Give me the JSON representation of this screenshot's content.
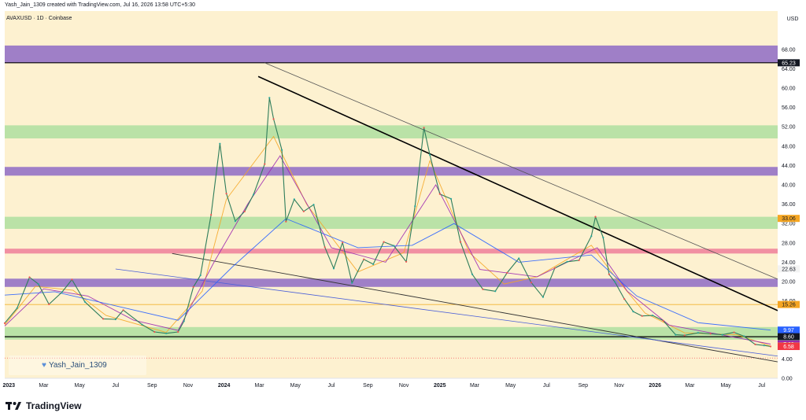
{
  "header": {
    "credit": "Yash_Jain_1309 created with TradingView.com, Jul 16, 2026 13:58 UTC+5:30"
  },
  "chart_data": {
    "type": "line",
    "title": "AVAXUSD · 1D · Coinbase",
    "currency": "USD",
    "y_ticks": [
      "68.00",
      "64.00",
      "60.00",
      "56.00",
      "52.00",
      "48.00",
      "44.00",
      "40.00",
      "36.00",
      "32.00",
      "28.00",
      "24.00",
      "20.00",
      "16.00",
      "4.00",
      "0.00"
    ],
    "x_ticks": [
      "2023",
      "Mar",
      "May",
      "Jul",
      "Sep",
      "Nov",
      "2024",
      "Mar",
      "May",
      "Jul",
      "Sep",
      "Nov",
      "2025",
      "Mar",
      "May",
      "Jul",
      "Sep",
      "Nov",
      "2026",
      "Mar",
      "May",
      "Jul"
    ],
    "x_tick_bold": [
      "2023",
      "2024",
      "2025",
      "2026"
    ],
    "zones": [
      {
        "low": 65.23,
        "high": 68.8,
        "color": "#8e6bc6"
      },
      {
        "low": 49.6,
        "high": 52.3,
        "color": "#aedfa0"
      },
      {
        "low": 41.9,
        "high": 43.7,
        "color": "#8e6bc6"
      },
      {
        "low": 30.9,
        "high": 33.4,
        "color": "#aedfa0"
      },
      {
        "low": 25.8,
        "high": 26.8,
        "color": "#ef7f9a"
      },
      {
        "low": 18.9,
        "high": 20.6,
        "color": "#8e6bc6"
      },
      {
        "low": 8.0,
        "high": 10.6,
        "color": "#aedfa0"
      }
    ],
    "levels": [
      {
        "value": 65.23,
        "color": "#000000"
      },
      {
        "value": 15.26,
        "color": "#f2b431"
      },
      {
        "value": 8.6,
        "color": "#000000"
      }
    ],
    "price_labels": [
      {
        "text": "65.23",
        "value": 65.23,
        "bg": "#131722",
        "fg": "#ffffff"
      },
      {
        "text": "33.06",
        "value": 33.06,
        "bg": "#f5a623",
        "fg": "#131722"
      },
      {
        "text": "22.63",
        "value": 22.63,
        "bg": "#f3f3f3",
        "fg": "#131722"
      },
      {
        "text": "15.26",
        "value": 15.26,
        "bg": "#f5a623",
        "fg": "#131722"
      },
      {
        "text": "9.97",
        "value": 9.97,
        "bg": "#2962ff",
        "fg": "#ffffff"
      },
      {
        "text": "8.60",
        "value": 8.6,
        "bg": "#131722",
        "fg": "#ffffff"
      },
      {
        "text": "7.08",
        "value": 7.08,
        "bg": "#9c27b0",
        "fg": "#ffffff"
      },
      {
        "text": "6.65",
        "value": 6.65,
        "bg": "#f5a623",
        "fg": "#131722"
      },
      {
        "text": "6.58",
        "value": 6.58,
        "bg": "#f23645",
        "fg": "#ffffff"
      }
    ],
    "price_series": [
      {
        "date": "2022-12-25",
        "close": 11.4
      },
      {
        "date": "2023-01-15",
        "close": 14.5
      },
      {
        "date": "2023-02-05",
        "close": 20.9
      },
      {
        "date": "2023-02-20",
        "close": 19.5
      },
      {
        "date": "2023-03-10",
        "close": 15.3
      },
      {
        "date": "2023-04-01",
        "close": 17.8
      },
      {
        "date": "2023-04-18",
        "close": 20.4
      },
      {
        "date": "2023-05-10",
        "close": 15.8
      },
      {
        "date": "2023-06-10",
        "close": 12.3
      },
      {
        "date": "2023-07-01",
        "close": 12.2
      },
      {
        "date": "2023-07-14",
        "close": 14.1
      },
      {
        "date": "2023-08-15",
        "close": 11.1
      },
      {
        "date": "2023-09-05",
        "close": 9.6
      },
      {
        "date": "2023-09-25",
        "close": 9.3
      },
      {
        "date": "2023-10-15",
        "close": 9.6
      },
      {
        "date": "2023-10-25",
        "close": 11.8
      },
      {
        "date": "2023-11-10",
        "close": 18.9
      },
      {
        "date": "2023-11-22",
        "close": 21.3
      },
      {
        "date": "2023-12-10",
        "close": 33.8
      },
      {
        "date": "2023-12-25",
        "close": 48.5
      },
      {
        "date": "2024-01-05",
        "close": 38.2
      },
      {
        "date": "2024-01-20",
        "close": 32.5
      },
      {
        "date": "2024-02-05",
        "close": 34.5
      },
      {
        "date": "2024-02-20",
        "close": 38.0
      },
      {
        "date": "2024-03-10",
        "close": 44.3
      },
      {
        "date": "2024-03-18",
        "close": 58.0
      },
      {
        "date": "2024-03-25",
        "close": 53.6
      },
      {
        "date": "2024-04-08",
        "close": 47.2
      },
      {
        "date": "2024-04-15",
        "close": 32.4
      },
      {
        "date": "2024-04-29",
        "close": 37.0
      },
      {
        "date": "2024-05-15",
        "close": 34.5
      },
      {
        "date": "2024-06-01",
        "close": 35.9
      },
      {
        "date": "2024-06-20",
        "close": 27.1
      },
      {
        "date": "2024-07-05",
        "close": 22.7
      },
      {
        "date": "2024-07-20",
        "close": 28.1
      },
      {
        "date": "2024-08-05",
        "close": 19.7
      },
      {
        "date": "2024-08-25",
        "close": 24.6
      },
      {
        "date": "2024-09-10",
        "close": 23.6
      },
      {
        "date": "2024-09-28",
        "close": 28.2
      },
      {
        "date": "2024-10-15",
        "close": 27.4
      },
      {
        "date": "2024-11-05",
        "close": 24.1
      },
      {
        "date": "2024-11-20",
        "close": 35.6
      },
      {
        "date": "2024-12-05",
        "close": 51.8
      },
      {
        "date": "2024-12-15",
        "close": 46.2
      },
      {
        "date": "2025-01-01",
        "close": 38.1
      },
      {
        "date": "2025-01-20",
        "close": 37.1
      },
      {
        "date": "2025-02-05",
        "close": 28.2
      },
      {
        "date": "2025-02-25",
        "close": 21.5
      },
      {
        "date": "2025-03-15",
        "close": 18.4
      },
      {
        "date": "2025-04-05",
        "close": 18.0
      },
      {
        "date": "2025-04-25",
        "close": 21.8
      },
      {
        "date": "2025-05-15",
        "close": 24.8
      },
      {
        "date": "2025-06-05",
        "close": 19.8
      },
      {
        "date": "2025-06-25",
        "close": 16.8
      },
      {
        "date": "2025-07-15",
        "close": 22.8
      },
      {
        "date": "2025-08-05",
        "close": 24.1
      },
      {
        "date": "2025-08-25",
        "close": 24.4
      },
      {
        "date": "2025-09-15",
        "close": 29.4
      },
      {
        "date": "2025-09-22",
        "close": 33.4
      },
      {
        "date": "2025-10-05",
        "close": 29.1
      },
      {
        "date": "2025-10-15",
        "close": 21.5
      },
      {
        "date": "2025-10-25",
        "close": 19.9
      },
      {
        "date": "2025-11-10",
        "close": 16.4
      },
      {
        "date": "2025-11-25",
        "close": 13.8
      },
      {
        "date": "2025-12-10",
        "close": 12.9
      },
      {
        "date": "2025-12-28",
        "close": 13.0
      },
      {
        "date": "2026-01-15",
        "close": 11.9
      },
      {
        "date": "2026-02-05",
        "close": 9.0
      },
      {
        "date": "2026-02-20",
        "close": 8.9
      },
      {
        "date": "2026-03-15",
        "close": 9.4
      },
      {
        "date": "2026-04-05",
        "close": 9.2
      },
      {
        "date": "2026-04-25",
        "close": 9.0
      },
      {
        "date": "2026-05-15",
        "close": 9.5
      },
      {
        "date": "2026-06-01",
        "close": 8.7
      },
      {
        "date": "2026-06-20",
        "close": 7.0
      },
      {
        "date": "2026-07-05",
        "close": 6.8
      },
      {
        "date": "2026-07-16",
        "close": 6.58
      }
    ],
    "moving_averages": [
      {
        "color": "#f5a623",
        "points": [
          [
            "2022-12-25",
            11.0
          ],
          [
            "2023-02-15",
            19.0
          ],
          [
            "2023-04-20",
            18.2
          ],
          [
            "2023-06-15",
            13.0
          ],
          [
            "2023-09-25",
            9.5
          ],
          [
            "2023-11-25",
            18.0
          ],
          [
            "2024-01-05",
            37.0
          ],
          [
            "2024-03-25",
            50.0
          ],
          [
            "2024-05-20",
            36.0
          ],
          [
            "2024-08-15",
            22.0
          ],
          [
            "2024-11-01",
            26.0
          ],
          [
            "2024-12-15",
            45.0
          ],
          [
            "2025-02-20",
            26.0
          ],
          [
            "2025-04-20",
            19.5
          ],
          [
            "2025-06-15",
            21.0
          ],
          [
            "2025-09-15",
            27.5
          ],
          [
            "2025-10-25",
            21.0
          ],
          [
            "2025-12-15",
            13.5
          ],
          [
            "2026-02-20",
            9.4
          ],
          [
            "2026-05-20",
            9.0
          ],
          [
            "2026-07-16",
            6.65
          ]
        ]
      },
      {
        "color": "#9c27b0",
        "points": [
          [
            "2022-12-25",
            10.8
          ],
          [
            "2023-03-01",
            18.5
          ],
          [
            "2023-05-15",
            17.0
          ],
          [
            "2023-08-01",
            12.0
          ],
          [
            "2023-10-15",
            9.9
          ],
          [
            "2023-12-15",
            24.0
          ],
          [
            "2024-02-10",
            36.0
          ],
          [
            "2024-04-05",
            46.0
          ],
          [
            "2024-07-01",
            27.0
          ],
          [
            "2024-10-01",
            24.0
          ],
          [
            "2024-12-25",
            40.0
          ],
          [
            "2025-03-10",
            22.5
          ],
          [
            "2025-06-15",
            21.0
          ],
          [
            "2025-09-25",
            27.0
          ],
          [
            "2025-11-15",
            18.0
          ],
          [
            "2026-01-25",
            11.0
          ],
          [
            "2026-04-15",
            9.2
          ],
          [
            "2026-07-16",
            7.08
          ]
        ]
      },
      {
        "color": "#2962ff",
        "points": [
          [
            "2022-12-25",
            17.2
          ],
          [
            "2023-03-20",
            17.9
          ],
          [
            "2023-07-01",
            15.0
          ],
          [
            "2023-10-15",
            12.0
          ],
          [
            "2024-01-15",
            23.0
          ],
          [
            "2024-04-15",
            33.0
          ],
          [
            "2024-08-15",
            27.0
          ],
          [
            "2024-11-15",
            27.5
          ],
          [
            "2025-01-25",
            32.0
          ],
          [
            "2025-05-15",
            24.0
          ],
          [
            "2025-09-15",
            25.5
          ],
          [
            "2025-12-01",
            17.0
          ],
          [
            "2026-03-15",
            11.5
          ],
          [
            "2026-07-16",
            9.97
          ]
        ]
      }
    ],
    "trendlines": [
      {
        "from": [
          "2024-03-10",
          65.23
        ],
        "to": [
          "2026-07-28",
          20.5
        ],
        "color": "#555555",
        "width": 0.8
      },
      {
        "from": [
          "2024-02-28",
          62.4
        ],
        "to": [
          "2026-07-28",
          14.0
        ],
        "color": "#000000",
        "width": 1.6
      },
      {
        "from": [
          "2023-10-05",
          25.8
        ],
        "to": [
          "2026-07-28",
          3.4
        ],
        "color": "#333333",
        "width": 0.9
      },
      {
        "from": [
          "2023-07-01",
          22.6
        ],
        "to": [
          "2026-07-28",
          4.6
        ],
        "color": "#4a5fd8",
        "width": 0.8
      }
    ],
    "low_level": {
      "value": 4.2,
      "color": "#f23645"
    }
  },
  "brand": {
    "name": "TradingView"
  },
  "watermark": {
    "text": "Yash_Jain_1309"
  }
}
